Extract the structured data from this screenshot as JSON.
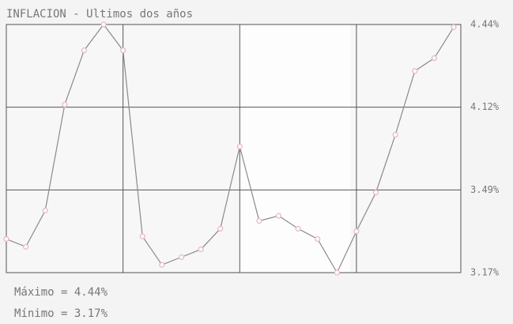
{
  "chart_data": {
    "type": "line",
    "title": "INFLACION - Ultimos dos años",
    "series": [
      {
        "color": "#8a8a8a",
        "marker_color": "#e8b8c0",
        "values": [
          3.3,
          3.27,
          3.41,
          4.13,
          4.34,
          4.44,
          4.34,
          3.31,
          3.2,
          3.23,
          3.26,
          3.34,
          3.82,
          3.37,
          3.39,
          3.34,
          3.3,
          3.17,
          3.33,
          3.48,
          3.91,
          4.26,
          4.31,
          4.43
        ]
      }
    ],
    "ylim": [
      3.17,
      4.44
    ],
    "yticks": [
      {
        "value": 3.17,
        "label": "3.17%"
      },
      {
        "value": 3.49,
        "label": "3.49%"
      },
      {
        "value": 4.12,
        "label": "4.12%"
      },
      {
        "value": 4.44,
        "label": "4.44%"
      }
    ],
    "grid": true,
    "stats": [
      "Máximo = 4.44%",
      "Mínimo = 3.17%"
    ]
  }
}
